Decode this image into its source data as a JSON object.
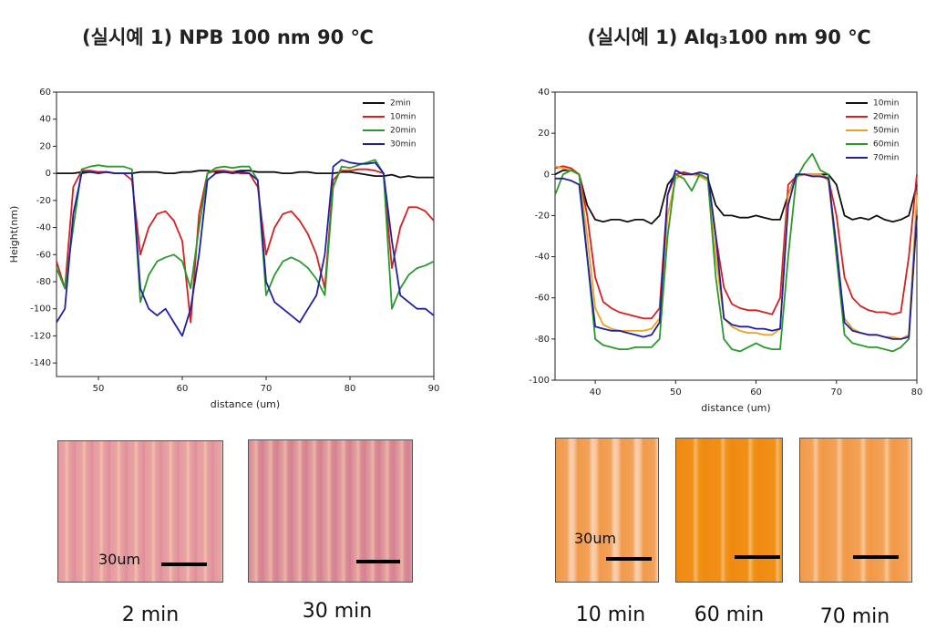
{
  "chart_data": [
    {
      "type": "line",
      "title": "(실시예 1) NPB 100 nm 90 ℃",
      "x_label": "distance (um)",
      "y_label": "Height(nm)",
      "x": [
        45,
        46,
        47,
        48,
        49,
        50,
        51,
        52,
        53,
        54,
        55,
        56,
        57,
        58,
        59,
        60,
        61,
        62,
        63,
        64,
        65,
        66,
        67,
        68,
        69,
        70,
        71,
        72,
        73,
        74,
        75,
        76,
        77,
        78,
        79,
        80,
        81,
        82,
        83,
        84,
        85,
        86,
        87,
        88,
        89,
        90
      ],
      "series": [
        {
          "name": "2min",
          "color": "#111111",
          "values": [
            0,
            0,
            0,
            1,
            1,
            1,
            1,
            0,
            0,
            0,
            1,
            1,
            1,
            0,
            0,
            1,
            1,
            2,
            2,
            1,
            1,
            1,
            2,
            2,
            1,
            1,
            1,
            0,
            0,
            1,
            1,
            0,
            0,
            0,
            1,
            1,
            0,
            -1,
            -2,
            -2,
            -1,
            -3,
            -2,
            -3,
            -3,
            -3
          ]
        },
        {
          "name": "10min",
          "color": "#d42020",
          "values": [
            -65,
            -85,
            -10,
            2,
            2,
            1,
            1,
            0,
            0,
            -5,
            -60,
            -40,
            -30,
            -28,
            -35,
            -50,
            -110,
            -30,
            0,
            2,
            2,
            1,
            0,
            0,
            -10,
            -60,
            -40,
            -30,
            -28,
            -35,
            -45,
            -60,
            -85,
            -5,
            2,
            2,
            3,
            3,
            2,
            0,
            -70,
            -40,
            -25,
            -25,
            -28,
            -35
          ]
        },
        {
          "name": "20min",
          "color": "#2a9a2a",
          "values": [
            -70,
            -85,
            -40,
            3,
            5,
            6,
            5,
            5,
            5,
            3,
            -95,
            -75,
            -65,
            -62,
            -60,
            -65,
            -85,
            -40,
            0,
            4,
            5,
            4,
            5,
            5,
            -5,
            -90,
            -75,
            -65,
            -62,
            -65,
            -70,
            -78,
            -90,
            -10,
            5,
            4,
            6,
            8,
            10,
            0,
            -100,
            -85,
            -75,
            -70,
            -68,
            -65
          ]
        },
        {
          "name": "30min",
          "color": "#2020a0",
          "values": [
            -110,
            -100,
            -30,
            0,
            1,
            0,
            1,
            0,
            0,
            0,
            -85,
            -100,
            -105,
            -100,
            -110,
            -120,
            -100,
            -60,
            -5,
            0,
            1,
            0,
            1,
            0,
            -5,
            -80,
            -95,
            -100,
            -105,
            -110,
            -100,
            -90,
            -60,
            5,
            10,
            8,
            7,
            7,
            8,
            0,
            -50,
            -90,
            -95,
            -100,
            -100,
            -105
          ]
        }
      ],
      "xlim": [
        45,
        90
      ],
      "xticks": [
        50,
        60,
        70,
        80,
        90
      ],
      "ylim": [
        -150,
        60
      ],
      "yticks": [
        -140,
        -120,
        -100,
        -80,
        -60,
        -40,
        -20,
        0,
        20,
        40,
        60
      ],
      "legend": "upper right"
    },
    {
      "type": "line",
      "title": "(실시예 1) Alq₃100 nm 90 ℃",
      "x_label": "distance (um)",
      "x": [
        35,
        36,
        37,
        38,
        39,
        40,
        41,
        42,
        43,
        44,
        45,
        46,
        47,
        48,
        49,
        50,
        51,
        52,
        53,
        54,
        55,
        56,
        57,
        58,
        59,
        60,
        61,
        62,
        63,
        64,
        65,
        66,
        67,
        68,
        69,
        70,
        71,
        72,
        73,
        74,
        75,
        76,
        77,
        78,
        79,
        80
      ],
      "series": [
        {
          "name": "10min",
          "color": "#111111",
          "values": [
            0,
            2,
            2,
            0,
            -15,
            -22,
            -23,
            -22,
            -22,
            -23,
            -22,
            -22,
            -24,
            -20,
            -5,
            0,
            1,
            0,
            0,
            -2,
            -15,
            -20,
            -20,
            -21,
            -21,
            -20,
            -21,
            -22,
            -22,
            -10,
            0,
            0,
            0,
            0,
            0,
            -5,
            -20,
            -22,
            -21,
            -22,
            -20,
            -22,
            -23,
            -22,
            -20,
            -5
          ]
        },
        {
          "name": "20min",
          "color": "#d42020",
          "values": [
            3,
            4,
            3,
            0,
            -20,
            -50,
            -62,
            -65,
            -67,
            -68,
            -69,
            -70,
            -70,
            -65,
            -10,
            0,
            1,
            0,
            0,
            -2,
            -30,
            -55,
            -63,
            -65,
            -66,
            -66,
            -67,
            -68,
            -60,
            -5,
            -1,
            0,
            0,
            0,
            -2,
            -20,
            -50,
            -60,
            -64,
            -66,
            -67,
            -67,
            -68,
            -67,
            -40,
            0
          ]
        },
        {
          "name": "50min",
          "color": "#f0a020",
          "values": [
            4,
            3,
            2,
            0,
            -30,
            -65,
            -73,
            -75,
            -76,
            -76,
            -76,
            -76,
            -75,
            -70,
            -20,
            -2,
            0,
            0,
            -1,
            -3,
            -40,
            -70,
            -74,
            -76,
            -77,
            -77,
            -78,
            -78,
            -75,
            -10,
            -1,
            0,
            0,
            0,
            -3,
            -40,
            -70,
            -75,
            -77,
            -78,
            -78,
            -79,
            -79,
            -80,
            -78,
            -10
          ]
        },
        {
          "name": "60min",
          "color": "#2a9a2a",
          "values": [
            -10,
            0,
            2,
            0,
            -40,
            -80,
            -83,
            -84,
            -85,
            -85,
            -84,
            -84,
            -84,
            -80,
            -30,
            0,
            -2,
            -8,
            0,
            -2,
            -50,
            -80,
            -85,
            -86,
            -84,
            -82,
            -84,
            -85,
            -85,
            -40,
            -2,
            5,
            10,
            2,
            0,
            -40,
            -78,
            -82,
            -83,
            -84,
            -84,
            -85,
            -86,
            -84,
            -80,
            -20
          ]
        },
        {
          "name": "70min",
          "color": "#2020a0",
          "values": [
            -2,
            -2,
            -3,
            -5,
            -40,
            -74,
            -75,
            -76,
            -76,
            -77,
            -78,
            -79,
            -78,
            -72,
            -10,
            2,
            0,
            0,
            1,
            0,
            -30,
            -70,
            -73,
            -74,
            -74,
            -75,
            -75,
            -76,
            -75,
            -15,
            0,
            0,
            -1,
            -1,
            -2,
            -35,
            -72,
            -76,
            -77,
            -78,
            -78,
            -79,
            -80,
            -80,
            -79,
            -20
          ]
        }
      ],
      "xlim": [
        35,
        80
      ],
      "xticks": [
        40,
        50,
        60,
        70,
        80
      ],
      "ylim": [
        -100,
        40
      ],
      "yticks": [
        -100,
        -80,
        -60,
        -40,
        -20,
        0,
        20,
        40
      ],
      "legend": "upper right"
    }
  ],
  "images": [
    {
      "caption": "2 min",
      "scale_label": "30um"
    },
    {
      "caption": "30 min"
    },
    {
      "caption": "10  min",
      "scale_label": "30um"
    },
    {
      "caption": "60  min"
    },
    {
      "caption": "70  min"
    }
  ]
}
